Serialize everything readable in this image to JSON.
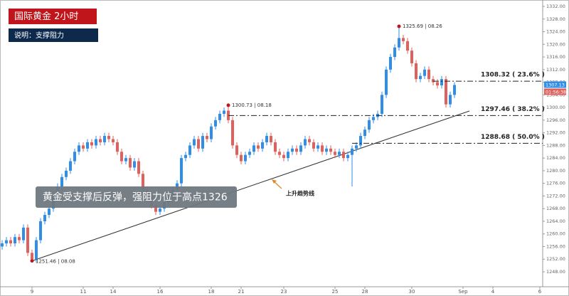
{
  "chart_data": {
    "type": "candlestick",
    "title": "国际黄金  2小时",
    "subtitle": "说明：支撑阻力",
    "callout": "黄金受支撑后反弹，强阻力位于高点1326",
    "up_color": "#2f8ee8",
    "down_color": "#e0605c",
    "categories": [
      null,
      null,
      null,
      null,
      null,
      null,
      null,
      "9",
      null,
      null,
      null,
      null,
      null,
      null,
      null,
      null,
      null,
      null,
      null,
      "11",
      null,
      null,
      null,
      null,
      null,
      null,
      "14",
      null,
      null,
      null,
      null,
      null,
      null,
      null,
      null,
      null,
      null,
      "16",
      null,
      null,
      null,
      null,
      null,
      null,
      null,
      null,
      null,
      null,
      null,
      "18",
      null,
      null,
      null,
      null,
      null,
      null,
      "21",
      null,
      null,
      null,
      null,
      null,
      null,
      null,
      null,
      null,
      "23",
      null,
      null,
      null,
      null,
      null,
      null,
      null,
      null,
      null,
      null,
      null,
      "25",
      null,
      null,
      null,
      null,
      null,
      null,
      "28",
      null,
      null,
      null,
      null,
      null,
      null,
      null,
      null,
      null,
      null,
      "30",
      null,
      null,
      null,
      null,
      null,
      null,
      null,
      null,
      null,
      null,
      null,
      "Sep",
      null,
      null,
      null,
      null,
      null,
      null,
      "4",
      null,
      null,
      null,
      null,
      null,
      null,
      null,
      null,
      null,
      null,
      "6"
    ],
    "open": [
      1256,
      1257,
      1258,
      1257,
      1259,
      1258,
      1262,
      1254,
      1252,
      1258,
      1264,
      1266,
      1268,
      1272,
      1275,
      1278,
      1280,
      1283,
      1286,
      1288,
      1287,
      1289,
      1288,
      1290,
      1289,
      1291,
      1290,
      1289,
      1286,
      1283,
      1284,
      1281,
      1283,
      1279,
      1274,
      1272,
      1269,
      1267,
      1268,
      1270,
      1272,
      1274,
      1276,
      1284,
      1285,
      1288,
      1290,
      1287,
      1291,
      1290,
      1294,
      1296,
      1298,
      1299,
      1296,
      1288,
      1285,
      1283,
      1285,
      1286,
      1288,
      1287,
      1289,
      1291,
      1289,
      1286,
      1285,
      1284,
      1286,
      1287,
      1286,
      1288,
      1290,
      1289,
      1287,
      1288,
      1286,
      1287,
      1286,
      1285,
      1286,
      1284,
      1285,
      1287,
      1288,
      1291,
      1293,
      1296,
      1297,
      1298,
      1304,
      1312,
      1316,
      1319,
      1322,
      1321,
      1318,
      1314,
      1309,
      1310,
      1312,
      1309,
      1308,
      1307,
      1309,
      1301,
      1304,
      null,
      null,
      null,
      null,
      null,
      null,
      null,
      null,
      null,
      null,
      null,
      null,
      null,
      null,
      null,
      null,
      null,
      null,
      null,
      null
    ],
    "high": [
      1258,
      1259,
      1259,
      1260,
      1260,
      1263,
      1263,
      1255,
      1259,
      1265,
      1267,
      1269,
      1273,
      1276,
      1279,
      1281,
      1284,
      1287,
      1289,
      1289,
      1290,
      1290,
      1291,
      1291,
      1292,
      1292,
      1291,
      1290,
      1287,
      1285,
      1285,
      1284,
      1284,
      1280,
      1275,
      1273,
      1270,
      1269,
      1271,
      1273,
      1275,
      1277,
      1285,
      1286,
      1289,
      1291,
      1291,
      1292,
      1292,
      1295,
      1297,
      1299,
      1300,
      1300.73,
      1297,
      1289,
      1286,
      1286,
      1287,
      1289,
      1289,
      1290,
      1292,
      1292,
      1290,
      1287,
      1286,
      1287,
      1288,
      1288,
      1289,
      1291,
      1291,
      1290,
      1289,
      1289,
      1288,
      1288,
      1287,
      1287,
      1287,
      1286,
      1288,
      1289,
      1292,
      1294,
      1297,
      1298,
      1299,
      1305,
      1313,
      1317,
      1320,
      1325.69,
      1323,
      1322,
      1319,
      1315,
      1311,
      1313,
      1313,
      1310,
      1309,
      1310,
      1310,
      1305,
      1308,
      null,
      null,
      null,
      null,
      null,
      null,
      null,
      null,
      null,
      null,
      null,
      null,
      null,
      null,
      null,
      null,
      null,
      null,
      null,
      null
    ],
    "low": [
      1255,
      1256,
      1256,
      1256,
      1257,
      1257,
      1253,
      1251.46,
      1251,
      1257,
      1263,
      1265,
      1267,
      1271,
      1274,
      1277,
      1279,
      1282,
      1285,
      1286,
      1286,
      1287,
      1287,
      1288,
      1288,
      1289,
      1288,
      1285,
      1282,
      1282,
      1280,
      1280,
      1278,
      1273,
      1271,
      1268,
      1266,
      1266,
      1267,
      1269,
      1271,
      1273,
      1275,
      1283,
      1284,
      1287,
      1286,
      1286,
      1289,
      1289,
      1293,
      1295,
      1297,
      1295,
      1287,
      1284,
      1282,
      1282,
      1284,
      1285,
      1286,
      1286,
      1288,
      1288,
      1285,
      1284,
      1283,
      1283,
      1285,
      1285,
      1285,
      1287,
      1288,
      1286,
      1286,
      1285,
      1285,
      1285,
      1284,
      1284,
      1283,
      1283,
      1275,
      1286,
      1287,
      1290,
      1292,
      1295,
      1296,
      1297,
      1303,
      1311,
      1315,
      1318,
      1320,
      1317,
      1313,
      1308,
      1308,
      1309,
      1308,
      1307,
      1306,
      1306,
      1300,
      1300,
      1303,
      null,
      null,
      null,
      null,
      null,
      null,
      null,
      null,
      null,
      null,
      null,
      null,
      null,
      null,
      null,
      null,
      null,
      null,
      null,
      null
    ],
    "close": [
      1257,
      1258,
      1257,
      1259,
      1258,
      1262,
      1254,
      1252,
      1258,
      1264,
      1266,
      1268,
      1272,
      1275,
      1278,
      1280,
      1283,
      1286,
      1288,
      1287,
      1289,
      1288,
      1290,
      1289,
      1291,
      1290,
      1289,
      1286,
      1283,
      1284,
      1281,
      1283,
      1279,
      1274,
      1272,
      1269,
      1267,
      1268,
      1270,
      1272,
      1274,
      1276,
      1284,
      1285,
      1288,
      1290,
      1287,
      1291,
      1290,
      1294,
      1296,
      1298,
      1299,
      1296,
      1288,
      1285,
      1283,
      1285,
      1286,
      1288,
      1287,
      1289,
      1291,
      1289,
      1286,
      1285,
      1284,
      1286,
      1287,
      1286,
      1288,
      1290,
      1289,
      1287,
      1288,
      1286,
      1287,
      1286,
      1285,
      1286,
      1284,
      1285,
      1287,
      1288,
      1291,
      1293,
      1296,
      1297,
      1298,
      1304,
      1312,
      1316,
      1319,
      1322,
      1321,
      1318,
      1314,
      1309,
      1310,
      1312,
      1309,
      1308,
      1307,
      1309,
      1301,
      1304,
      1307.13,
      null,
      null,
      null,
      null,
      null,
      null,
      null,
      null,
      null,
      null,
      null,
      null,
      null,
      null,
      null,
      null,
      null,
      null,
      null,
      null
    ],
    "ylim": [
      1246,
      1334
    ],
    "yticks": [
      {
        "value": 1248,
        "label": "1248.00"
      },
      {
        "value": 1252,
        "label": "1252.00"
      },
      {
        "value": 1256,
        "label": "1256.00"
      },
      {
        "value": 1260,
        "label": "1260.00"
      },
      {
        "value": 1264,
        "label": "1264.00"
      },
      {
        "value": 1268,
        "label": "1268.00"
      },
      {
        "value": 1272,
        "label": "1272.00"
      },
      {
        "value": 1276,
        "label": "1276.00"
      },
      {
        "value": 1280,
        "label": "1280.00"
      },
      {
        "value": 1284,
        "label": "1284.00"
      },
      {
        "value": 1288,
        "label": "1288.00"
      },
      {
        "value": 1292,
        "label": "1292.00"
      },
      {
        "value": 1296,
        "label": "1296.00"
      },
      {
        "value": 1300,
        "label": "1300.00"
      },
      {
        "value": 1304,
        "label": "1304.00"
      },
      {
        "value": 1308,
        "label": "1308.00"
      },
      {
        "value": 1312,
        "label": "1312.00"
      },
      {
        "value": 1316,
        "label": "1316.00"
      },
      {
        "value": 1320,
        "label": "1320.00"
      },
      {
        "value": 1324,
        "label": "1324.00"
      },
      {
        "value": 1328,
        "label": "1328.00"
      },
      {
        "value": 1332,
        "label": "1332.00"
      }
    ],
    "price_tag": {
      "value": 1307.13,
      "label": "1307.13"
    },
    "timer": "01:56:38",
    "levels": [
      {
        "value": 1308.32,
        "start": 101,
        "label": "1308.32 ( 23.6% )"
      },
      {
        "value": 1297.46,
        "start": 53,
        "label": "1297.46 ( 38.2% )"
      },
      {
        "value": 1288.68,
        "start": 82,
        "label": "1288.68 ( 50.0% )"
      }
    ],
    "points": [
      {
        "x": 7,
        "y": 1251.46,
        "label": "1251.46 | 08.08"
      },
      {
        "x": 53,
        "y": 1300.73,
        "label": "1300.73 | 08.18"
      },
      {
        "x": 93,
        "y": 1325.69,
        "label": "1325.69 | 08.26"
      }
    ],
    "trendline": {
      "start": {
        "x": 7,
        "y": 1251.46
      },
      "end": {
        "x": 109.5,
        "y": 1298.9
      },
      "label": "上升趋势线"
    }
  }
}
